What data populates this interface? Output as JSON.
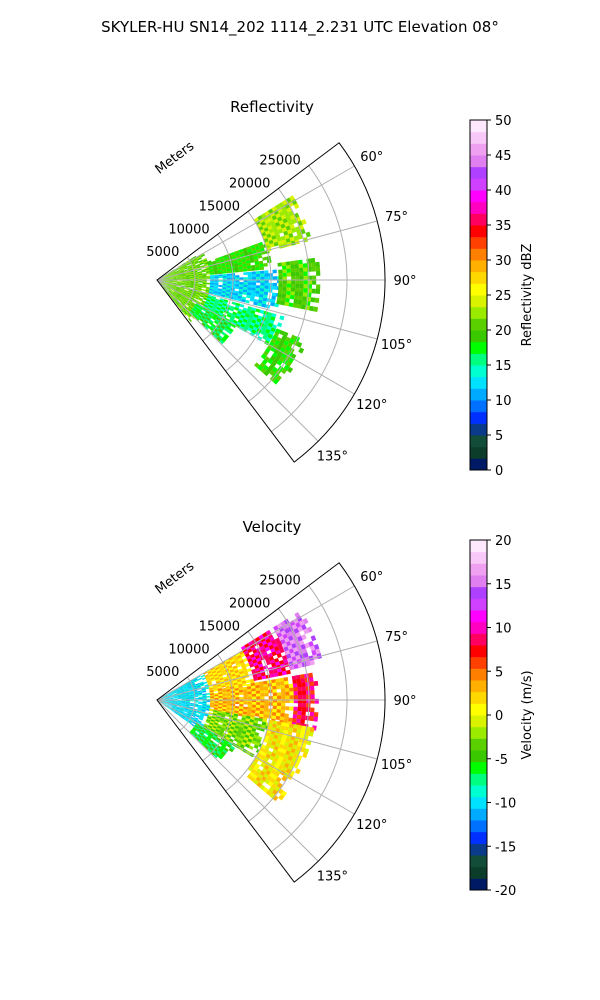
{
  "figure_title": "SKYLER-HU  SN14_202  1114_2.231 UTC Elevation 08°",
  "chart_data": [
    {
      "type": "polar-sector-radar",
      "title": "Reflectivity",
      "radial_label": "Meters",
      "radial_ticks": [
        5000,
        10000,
        15000,
        20000,
        25000
      ],
      "radial_max": 30000,
      "azimuth_range_deg": [
        53,
        143
      ],
      "azimuth_ticks": [
        "60°",
        "75°",
        "90°",
        "105°",
        "120°",
        "135°"
      ],
      "azimuth_tick_values": [
        60,
        75,
        90,
        105,
        120,
        135
      ],
      "grid": true,
      "colorbar": {
        "label": "Reflectivity dBZ",
        "min": 0,
        "max": 50,
        "ticks": [
          "0",
          "5",
          "10",
          "15",
          "20",
          "25",
          "30",
          "35",
          "40",
          "45",
          "50"
        ],
        "colors": [
          "#001a66",
          "#0b3d2a",
          "#124d3a",
          "#0a3a8a",
          "#0030ff",
          "#0070ff",
          "#00aaff",
          "#00e0ff",
          "#00ffd0",
          "#00ff80",
          "#00ff00",
          "#3ac800",
          "#5ad000",
          "#9aeb00",
          "#d8f200",
          "#ffff00",
          "#ffd800",
          "#ffb000",
          "#ff8000",
          "#ff4000",
          "#ff0000",
          "#ff0060",
          "#ff00c0",
          "#ff00ff",
          "#d040ff",
          "#b040ff",
          "#e080f0",
          "#f0a0f0",
          "#f8c8f8",
          "#fde8fd"
        ]
      },
      "regions": [
        {
          "r0": 500,
          "r1": 7000,
          "a0": 58,
          "a1": 140,
          "value": 21
        },
        {
          "r0": 7000,
          "r1": 15000,
          "a0": 70,
          "a1": 84,
          "value": 19
        },
        {
          "r0": 15000,
          "r1": 21000,
          "a0": 58,
          "a1": 74,
          "value": 23
        },
        {
          "r0": 7000,
          "r1": 16000,
          "a0": 85,
          "a1": 104,
          "value": 12
        },
        {
          "r0": 16000,
          "r1": 21000,
          "a0": 82,
          "a1": 100,
          "value": 20
        },
        {
          "r0": 7000,
          "r1": 17000,
          "a0": 106,
          "a1": 120,
          "value": 16
        },
        {
          "r0": 17000,
          "r1": 21000,
          "a0": 112,
          "a1": 130,
          "value": 19
        },
        {
          "r0": 6000,
          "r1": 12000,
          "a0": 120,
          "a1": 133,
          "value": 17
        }
      ]
    },
    {
      "type": "polar-sector-radar",
      "title": "Velocity",
      "radial_label": "Meters",
      "radial_ticks": [
        5000,
        10000,
        15000,
        20000,
        25000
      ],
      "radial_max": 30000,
      "azimuth_range_deg": [
        53,
        143
      ],
      "azimuth_ticks": [
        "60°",
        "75°",
        "90°",
        "105°",
        "120°",
        "135°"
      ],
      "azimuth_tick_values": [
        60,
        75,
        90,
        105,
        120,
        135
      ],
      "grid": true,
      "colorbar": {
        "label": "Velocity (m/s)",
        "min": -20,
        "max": 20,
        "ticks": [
          "-20",
          "-15",
          "-10",
          "-5",
          "0",
          "5",
          "10",
          "15",
          "20"
        ],
        "colors": [
          "#001a66",
          "#0b3d2a",
          "#124d3a",
          "#0a3a8a",
          "#0030ff",
          "#0070ff",
          "#00aaff",
          "#00e0ff",
          "#00ffd0",
          "#00ff80",
          "#00ff00",
          "#3ac800",
          "#5ad000",
          "#9aeb00",
          "#d8f200",
          "#ffff00",
          "#ffd800",
          "#ffb000",
          "#ff8000",
          "#ff4000",
          "#ff0000",
          "#ff0060",
          "#ff00c0",
          "#ff00ff",
          "#d040ff",
          "#b040ff",
          "#e080f0",
          "#f0a0f0",
          "#f8c8f8",
          "#fde8fd"
        ]
      },
      "regions": [
        {
          "r0": 500,
          "r1": 7000,
          "a0": 60,
          "a1": 125,
          "value": -10
        },
        {
          "r0": 7000,
          "r1": 13000,
          "a0": 60,
          "a1": 80,
          "value": 2
        },
        {
          "r0": 13000,
          "r1": 18000,
          "a0": 58,
          "a1": 78,
          "value": 9
        },
        {
          "r0": 18000,
          "r1": 22000,
          "a0": 58,
          "a1": 76,
          "value": 15
        },
        {
          "r0": 7000,
          "r1": 18000,
          "a0": 80,
          "a1": 100,
          "value": 3
        },
        {
          "r0": 18000,
          "r1": 21000,
          "a0": 80,
          "a1": 100,
          "value": 8
        },
        {
          "r0": 7000,
          "r1": 15000,
          "a0": 100,
          "a1": 120,
          "value": -3
        },
        {
          "r0": 15000,
          "r1": 21000,
          "a0": 100,
          "a1": 130,
          "value": 1
        },
        {
          "r0": 6000,
          "r1": 12000,
          "a0": 120,
          "a1": 133,
          "value": -6
        }
      ]
    }
  ]
}
